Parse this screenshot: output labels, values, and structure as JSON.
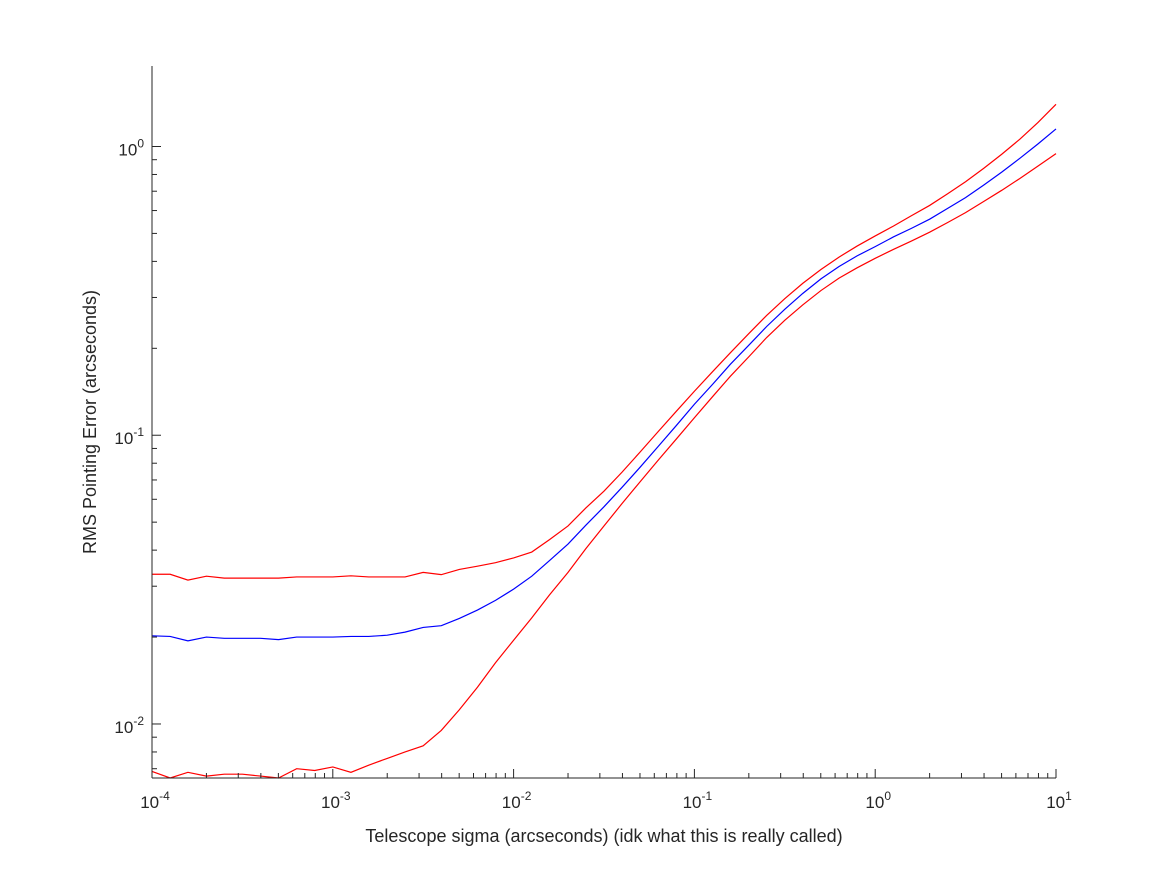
{
  "chart_data": {
    "type": "line",
    "title": "",
    "xlabel": "Telescope sigma (arcseconds) (idk what this is really called)",
    "ylabel": "RMS Pointing Error (arcseconds)",
    "xscale": "log",
    "yscale": "log",
    "xlim": [
      0.0001,
      10
    ],
    "ylim": [
      0.0065,
      1.9
    ],
    "grid": false,
    "legend": "none",
    "x_ticks": [
      {
        "value": 0.0001,
        "base": "10",
        "exp": "-4"
      },
      {
        "value": 0.001,
        "base": "10",
        "exp": "-3"
      },
      {
        "value": 0.01,
        "base": "10",
        "exp": "-2"
      },
      {
        "value": 0.1,
        "base": "10",
        "exp": "-1"
      },
      {
        "value": 1,
        "base": "10",
        "exp": "0"
      },
      {
        "value": 10,
        "base": "10",
        "exp": "1"
      }
    ],
    "y_ticks": [
      {
        "value": 0.01,
        "base": "10",
        "exp": "-2"
      },
      {
        "value": 0.1,
        "base": "10",
        "exp": "-1"
      },
      {
        "value": 1,
        "base": "10",
        "exp": "0"
      }
    ],
    "series": [
      {
        "color": "#ff0000",
        "points": [
          [
            0.0001,
            0.033
          ],
          [
            0.000126,
            0.033
          ],
          [
            0.000158,
            0.0315
          ],
          [
            0.0002,
            0.0325
          ],
          [
            0.000251,
            0.032
          ],
          [
            0.000316,
            0.032
          ],
          [
            0.000398,
            0.032
          ],
          [
            0.000501,
            0.032
          ],
          [
            0.000631,
            0.0323
          ],
          [
            0.000794,
            0.0323
          ],
          [
            0.001,
            0.0323
          ],
          [
            0.00126,
            0.0326
          ],
          [
            0.00158,
            0.0323
          ],
          [
            0.002,
            0.0323
          ],
          [
            0.00251,
            0.0323
          ],
          [
            0.00316,
            0.0335
          ],
          [
            0.00398,
            0.0329
          ],
          [
            0.00501,
            0.0343
          ],
          [
            0.00631,
            0.0352
          ],
          [
            0.00794,
            0.0362
          ],
          [
            0.01,
            0.0376
          ],
          [
            0.0126,
            0.0394
          ],
          [
            0.0158,
            0.0435
          ],
          [
            0.02,
            0.0485
          ],
          [
            0.0251,
            0.056
          ],
          [
            0.0316,
            0.064
          ],
          [
            0.0398,
            0.0745
          ],
          [
            0.0501,
            0.0875
          ],
          [
            0.0631,
            0.103
          ],
          [
            0.0794,
            0.121
          ],
          [
            0.1,
            0.142
          ],
          [
            0.126,
            0.166
          ],
          [
            0.158,
            0.193
          ],
          [
            0.2,
            0.225
          ],
          [
            0.251,
            0.26
          ],
          [
            0.316,
            0.297
          ],
          [
            0.398,
            0.336
          ],
          [
            0.501,
            0.375
          ],
          [
            0.631,
            0.414
          ],
          [
            0.794,
            0.452
          ],
          [
            1,
            0.49
          ],
          [
            1.26,
            0.53
          ],
          [
            1.58,
            0.575
          ],
          [
            2,
            0.625
          ],
          [
            2.51,
            0.685
          ],
          [
            3.16,
            0.755
          ],
          [
            3.98,
            0.84
          ],
          [
            5.01,
            0.94
          ],
          [
            6.31,
            1.06
          ],
          [
            7.94,
            1.21
          ],
          [
            10,
            1.4
          ]
        ]
      },
      {
        "color": "#0000ff",
        "points": [
          [
            0.0001,
            0.0202
          ],
          [
            0.000126,
            0.0201
          ],
          [
            0.000158,
            0.0194
          ],
          [
            0.0002,
            0.02
          ],
          [
            0.000251,
            0.0198
          ],
          [
            0.000316,
            0.0198
          ],
          [
            0.000398,
            0.0198
          ],
          [
            0.000501,
            0.0196
          ],
          [
            0.000631,
            0.02
          ],
          [
            0.000794,
            0.02
          ],
          [
            0.001,
            0.02
          ],
          [
            0.00126,
            0.0201
          ],
          [
            0.00158,
            0.0201
          ],
          [
            0.002,
            0.0203
          ],
          [
            0.00251,
            0.0208
          ],
          [
            0.00316,
            0.0216
          ],
          [
            0.00398,
            0.0219
          ],
          [
            0.00501,
            0.0232
          ],
          [
            0.00631,
            0.0248
          ],
          [
            0.00794,
            0.0268
          ],
          [
            0.01,
            0.0293
          ],
          [
            0.0126,
            0.0325
          ],
          [
            0.0158,
            0.0368
          ],
          [
            0.02,
            0.042
          ],
          [
            0.0251,
            0.0488
          ],
          [
            0.0316,
            0.0565
          ],
          [
            0.0398,
            0.066
          ],
          [
            0.0501,
            0.0775
          ],
          [
            0.0631,
            0.0915
          ],
          [
            0.0794,
            0.108
          ],
          [
            0.1,
            0.128
          ],
          [
            0.126,
            0.15
          ],
          [
            0.158,
            0.176
          ],
          [
            0.2,
            0.205
          ],
          [
            0.251,
            0.238
          ],
          [
            0.316,
            0.273
          ],
          [
            0.398,
            0.31
          ],
          [
            0.501,
            0.348
          ],
          [
            0.631,
            0.384
          ],
          [
            0.794,
            0.418
          ],
          [
            1,
            0.45
          ],
          [
            1.26,
            0.486
          ],
          [
            1.58,
            0.52
          ],
          [
            2,
            0.56
          ],
          [
            2.51,
            0.61
          ],
          [
            3.16,
            0.665
          ],
          [
            3.98,
            0.735
          ],
          [
            5.01,
            0.815
          ],
          [
            6.31,
            0.91
          ],
          [
            7.94,
            1.02
          ],
          [
            10,
            1.15
          ]
        ]
      },
      {
        "color": "#ff0000",
        "points": [
          [
            0.0001,
            0.00685
          ],
          [
            0.000126,
            0.0065
          ],
          [
            0.000158,
            0.0068
          ],
          [
            0.0002,
            0.0066
          ],
          [
            0.000251,
            0.0067
          ],
          [
            0.000316,
            0.0067
          ],
          [
            0.000398,
            0.0066
          ],
          [
            0.000501,
            0.0065
          ],
          [
            0.000631,
            0.007
          ],
          [
            0.000794,
            0.0069
          ],
          [
            0.001,
            0.0071
          ],
          [
            0.00126,
            0.0068
          ],
          [
            0.00158,
            0.0072
          ],
          [
            0.002,
            0.0076
          ],
          [
            0.00251,
            0.008
          ],
          [
            0.00316,
            0.0084
          ],
          [
            0.00398,
            0.0095
          ],
          [
            0.00501,
            0.0112
          ],
          [
            0.00631,
            0.0134
          ],
          [
            0.00794,
            0.0163
          ],
          [
            0.01,
            0.0195
          ],
          [
            0.0126,
            0.0233
          ],
          [
            0.0158,
            0.028
          ],
          [
            0.02,
            0.0335
          ],
          [
            0.0251,
            0.0405
          ],
          [
            0.0316,
            0.0485
          ],
          [
            0.0398,
            0.058
          ],
          [
            0.0501,
            0.069
          ],
          [
            0.0631,
            0.082
          ],
          [
            0.0794,
            0.097
          ],
          [
            0.1,
            0.115
          ],
          [
            0.126,
            0.136
          ],
          [
            0.158,
            0.16
          ],
          [
            0.2,
            0.187
          ],
          [
            0.251,
            0.218
          ],
          [
            0.316,
            0.25
          ],
          [
            0.398,
            0.283
          ],
          [
            0.501,
            0.317
          ],
          [
            0.631,
            0.35
          ],
          [
            0.794,
            0.38
          ],
          [
            1,
            0.41
          ],
          [
            1.26,
            0.44
          ],
          [
            1.58,
            0.47
          ],
          [
            2,
            0.505
          ],
          [
            2.51,
            0.545
          ],
          [
            3.16,
            0.59
          ],
          [
            3.98,
            0.645
          ],
          [
            5.01,
            0.705
          ],
          [
            6.31,
            0.775
          ],
          [
            7.94,
            0.855
          ],
          [
            10,
            0.945
          ]
        ]
      }
    ]
  }
}
